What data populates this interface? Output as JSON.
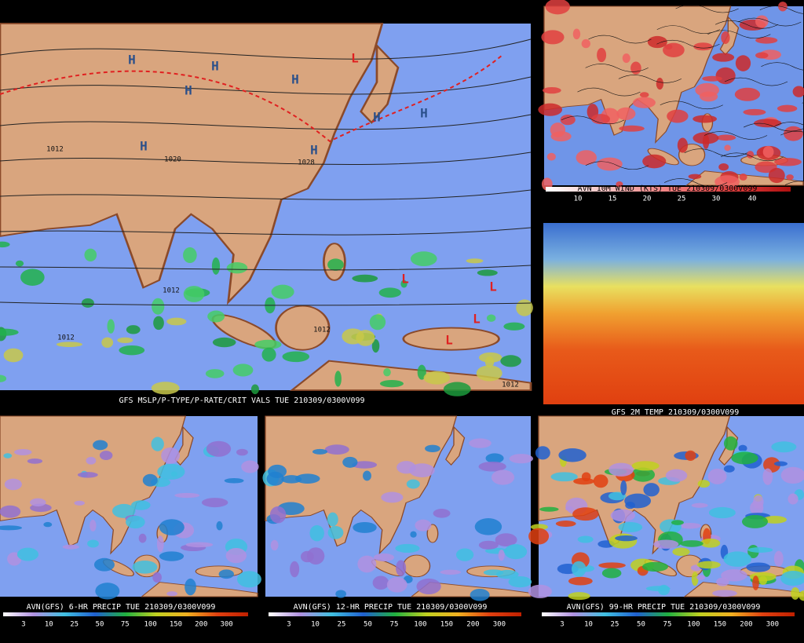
{
  "main_map": {
    "caption": "GFS MSLP/P-TYPE/P-RATE/CRIT VALS TUE 210309/0300V099",
    "labels": [
      "H",
      "H",
      "H",
      "H",
      "H",
      "H",
      "H",
      "H",
      "L",
      "L",
      "L",
      "L",
      "L",
      "1012",
      "1020",
      "1028",
      "1012",
      "1012",
      "1012",
      "1012"
    ]
  },
  "wind_map": {
    "caption": "AVN 10M WIND (KTS) TUE 210309/0300V099",
    "scale": [
      "10",
      "15",
      "20",
      "25",
      "30",
      "40"
    ]
  },
  "temp_map": {
    "caption": "GFS 2M TEMP 210309/0300V099"
  },
  "precip_maps": [
    {
      "caption": "AVN(GFS) 6-HR PRECIP TUE 210309/0300V099",
      "scale": [
        "3",
        "10",
        "25",
        "50",
        "75",
        "100",
        "150",
        "200",
        "300"
      ]
    },
    {
      "caption": "AVN(GFS) 12-HR PRECIP TUE 210309/0300V099",
      "scale": [
        "3",
        "10",
        "25",
        "50",
        "75",
        "100",
        "150",
        "200",
        "300"
      ]
    },
    {
      "caption": "AVN(GFS) 99-HR PRECIP TUE 210309/0300V099",
      "scale": [
        "3",
        "10",
        "25",
        "50",
        "75",
        "100",
        "150",
        "200",
        "300"
      ]
    }
  ]
}
